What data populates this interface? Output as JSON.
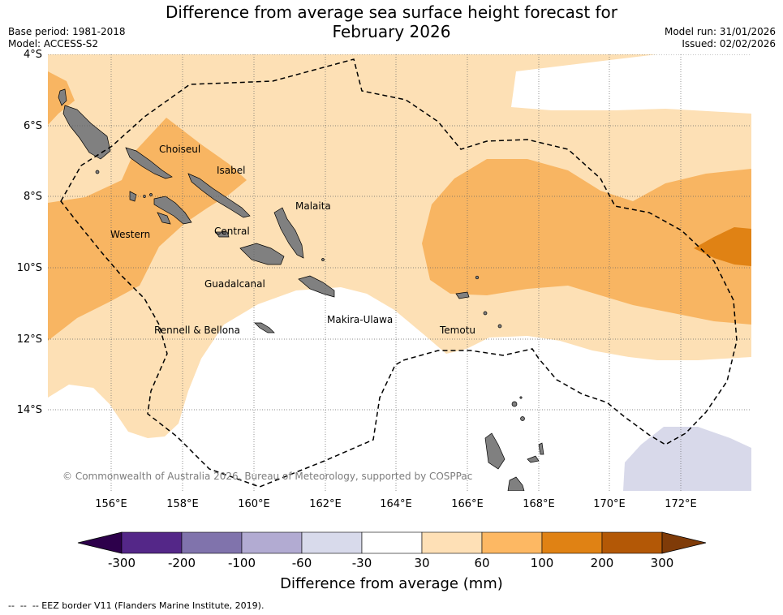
{
  "header": {
    "title_line1": "Difference from average sea surface height forecast for",
    "title_line2": "February 2026",
    "base_period": "Base period: 1981-2018",
    "model": "Model: ACCESS-S2",
    "model_run": "Model run: 31/01/2026",
    "issued": "Issued: 02/02/2026"
  },
  "map": {
    "lat_labels": [
      "4°S",
      "6°S",
      "8°S",
      "10°S",
      "12°S",
      "14°S"
    ],
    "lon_labels": [
      "156°E",
      "158°E",
      "160°E",
      "162°E",
      "164°E",
      "166°E",
      "168°E",
      "170°E",
      "172°E"
    ],
    "regions": [
      "Choiseul",
      "Isabel",
      "Malaita",
      "Western",
      "Central",
      "Guadalcanal",
      "Rennell & Bellona",
      "Makira-Ulawa",
      "Temotu"
    ],
    "credit": "© Commonwealth of Australia 2026, Bureau of Meteorology, supported by COSPPac",
    "colors": {
      "ocean_white": "#ffffff",
      "c30_60": "#fde0b5",
      "c60_100": "#f8b562",
      "c100_200": "#e08214",
      "cneg30_neg60": "#d8d9ea",
      "land": "#808080"
    }
  },
  "colorbar": {
    "tick_labels": [
      "-300",
      "-200",
      "-100",
      "-60",
      "-30",
      "30",
      "60",
      "100",
      "200",
      "300"
    ],
    "colors": [
      "#2d004b",
      "#542788",
      "#8073ac",
      "#b2abd2",
      "#d8daeb",
      "#ffffff",
      "#fee0b6",
      "#fdb863",
      "#e08214",
      "#b35806",
      "#7f3b08"
    ],
    "label": "Difference from average (mm)"
  },
  "footer": {
    "legend": "--  --  -- EEZ border V11 (Flanders Marine Institute, 2019)."
  }
}
